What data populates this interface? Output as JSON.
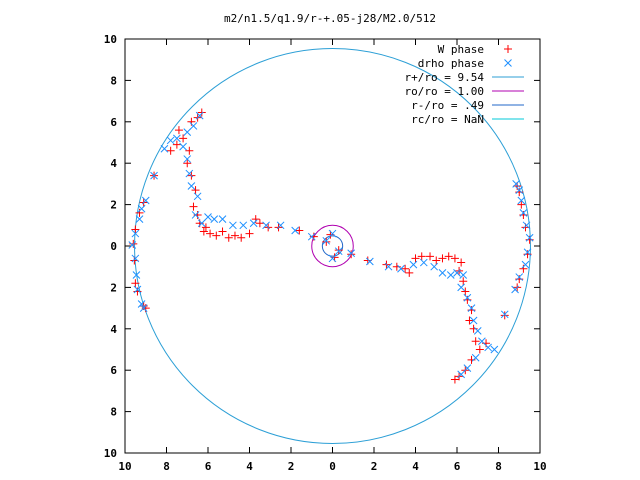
{
  "chart_data": {
    "type": "scatter",
    "title": "m2/n1.5/q1.9/r-+.05-j28/M2.0/512",
    "xlabel": "",
    "ylabel": "",
    "xlim": [
      -10,
      10
    ],
    "ylim": [
      -10,
      10
    ],
    "x_ticks": [
      -10,
      -8,
      -6,
      -4,
      -2,
      0,
      2,
      4,
      6,
      8,
      10
    ],
    "x_tick_labels": [
      "10",
      "8",
      "6",
      "4",
      "2",
      "0",
      "2",
      "4",
      "6",
      "8",
      "10"
    ],
    "y_ticks": [
      10,
      8,
      6,
      4,
      2,
      0,
      -2,
      -4,
      -6,
      -8,
      -10
    ],
    "y_tick_labels": [
      "10",
      "8",
      "6",
      "4",
      "2",
      "0",
      "2",
      "4",
      "6",
      "8",
      "10"
    ],
    "grid": false,
    "legend_position": "top-right",
    "legend": [
      {
        "label": "W phase",
        "kind": "plus",
        "color": "#ff0000"
      },
      {
        "label": "drho phase",
        "kind": "cross",
        "color": "#1e90ff"
      },
      {
        "label": "r+/ro = 9.54",
        "kind": "line",
        "color": "#2c9fd6"
      },
      {
        "label": "ro/ro = 1.00",
        "kind": "line",
        "color": "#b000b0"
      },
      {
        "label": "r-/ro = .49",
        "kind": "line",
        "color": "#2267c8"
      },
      {
        "label": "rc/ro = NaN",
        "kind": "line",
        "color": "#00c8d8"
      }
    ],
    "circles": [
      {
        "name": "r+/ro",
        "radius": 9.54,
        "color": "#2c9fd6"
      },
      {
        "name": "ro/ro",
        "radius": 1.0,
        "color": "#b000b0"
      },
      {
        "name": "r-/ro",
        "radius": 0.49,
        "color": "#2267c8"
      }
    ],
    "series": [
      {
        "name": "W phase",
        "marker": "plus",
        "color": "#ff0000",
        "points": [
          [
            -0.1,
            0.55
          ],
          [
            0.1,
            -0.55
          ],
          [
            -0.3,
            0.2
          ],
          [
            0.3,
            -0.2
          ],
          [
            -0.9,
            0.45
          ],
          [
            -1.6,
            0.75
          ],
          [
            -2.6,
            0.9
          ],
          [
            -3.1,
            0.9
          ],
          [
            -3.5,
            1.1
          ],
          [
            -3.7,
            1.3
          ],
          [
            -4.0,
            0.6
          ],
          [
            -4.4,
            0.4
          ],
          [
            -4.7,
            0.5
          ],
          [
            -5.0,
            0.4
          ],
          [
            -5.3,
            0.7
          ],
          [
            -5.6,
            0.5
          ],
          [
            -5.9,
            0.6
          ],
          [
            -6.2,
            0.7
          ],
          [
            -6.1,
            0.9
          ],
          [
            -6.4,
            1.1
          ],
          [
            -6.5,
            1.5
          ],
          [
            -6.7,
            1.9
          ],
          [
            -6.6,
            2.7
          ],
          [
            -6.8,
            3.4
          ],
          [
            -7.0,
            4.0
          ],
          [
            -6.9,
            4.6
          ],
          [
            -7.2,
            5.2
          ],
          [
            -7.5,
            4.9
          ],
          [
            -7.8,
            4.6
          ],
          [
            -6.5,
            6.2
          ],
          [
            -6.3,
            6.45
          ],
          [
            -6.8,
            6.0
          ],
          [
            -7.4,
            5.6
          ],
          [
            -8.6,
            3.4
          ],
          [
            -9.1,
            2.1
          ],
          [
            -9.3,
            1.6
          ],
          [
            -9.5,
            0.8
          ],
          [
            -9.6,
            0.1
          ],
          [
            -9.55,
            -0.7
          ],
          [
            -9.5,
            -1.8
          ],
          [
            -9.4,
            -2.2
          ],
          [
            -9.1,
            -2.9
          ],
          [
            -9.0,
            -3.0
          ],
          [
            0.9,
            -0.4
          ],
          [
            1.7,
            -0.7
          ],
          [
            2.6,
            -0.9
          ],
          [
            3.1,
            -1.0
          ],
          [
            3.5,
            -1.1
          ],
          [
            3.7,
            -1.3
          ],
          [
            4.0,
            -0.6
          ],
          [
            4.3,
            -0.5
          ],
          [
            4.7,
            -0.5
          ],
          [
            5.0,
            -0.7
          ],
          [
            5.3,
            -0.6
          ],
          [
            5.6,
            -0.5
          ],
          [
            5.9,
            -0.6
          ],
          [
            6.2,
            -0.8
          ],
          [
            6.1,
            -1.2
          ],
          [
            6.3,
            -1.7
          ],
          [
            6.4,
            -2.2
          ],
          [
            6.5,
            -2.6
          ],
          [
            6.7,
            -3.1
          ],
          [
            6.6,
            -3.6
          ],
          [
            6.8,
            -4.0
          ],
          [
            6.9,
            -4.6
          ],
          [
            7.1,
            -5.0
          ],
          [
            6.7,
            -5.5
          ],
          [
            6.4,
            -6.0
          ],
          [
            6.1,
            -6.3
          ],
          [
            5.9,
            -6.45
          ],
          [
            7.4,
            -4.7
          ],
          [
            8.3,
            -3.35
          ],
          [
            8.9,
            -2.0
          ],
          [
            9.0,
            -1.6
          ],
          [
            9.2,
            -1.1
          ],
          [
            9.4,
            -0.4
          ],
          [
            9.5,
            0.3
          ],
          [
            9.3,
            0.9
          ],
          [
            9.2,
            1.5
          ],
          [
            9.1,
            2.0
          ],
          [
            9.0,
            2.6
          ],
          [
            8.9,
            2.9
          ]
        ]
      },
      {
        "name": "drho phase",
        "marker": "cross",
        "color": "#1e90ff",
        "points": [
          [
            0.0,
            0.6
          ],
          [
            0.0,
            -0.6
          ],
          [
            -0.3,
            0.25
          ],
          [
            0.3,
            -0.25
          ],
          [
            -1.0,
            0.45
          ],
          [
            -1.8,
            0.75
          ],
          [
            -2.5,
            1.0
          ],
          [
            -3.2,
            1.0
          ],
          [
            -3.8,
            1.1
          ],
          [
            -4.3,
            1.0
          ],
          [
            -4.8,
            1.0
          ],
          [
            -5.3,
            1.3
          ],
          [
            -5.7,
            1.3
          ],
          [
            -6.0,
            1.4
          ],
          [
            -6.3,
            1.1
          ],
          [
            -6.6,
            1.5
          ],
          [
            -6.5,
            2.4
          ],
          [
            -6.8,
            2.9
          ],
          [
            -6.9,
            3.5
          ],
          [
            -7.0,
            4.2
          ],
          [
            -7.2,
            4.8
          ],
          [
            -7.5,
            5.2
          ],
          [
            -7.8,
            5.1
          ],
          [
            -8.1,
            4.7
          ],
          [
            -6.7,
            5.8
          ],
          [
            -6.4,
            6.3
          ],
          [
            -7.0,
            5.5
          ],
          [
            -8.6,
            3.4
          ],
          [
            -9.0,
            2.2
          ],
          [
            -9.2,
            1.8
          ],
          [
            -9.3,
            1.3
          ],
          [
            -9.5,
            0.6
          ],
          [
            -9.65,
            0.05
          ],
          [
            -9.5,
            -0.6
          ],
          [
            -9.45,
            -1.4
          ],
          [
            -9.4,
            -2.1
          ],
          [
            -9.2,
            -2.8
          ],
          [
            -9.1,
            -3.0
          ],
          [
            0.9,
            -0.35
          ],
          [
            1.8,
            -0.75
          ],
          [
            2.7,
            -1.0
          ],
          [
            3.3,
            -1.1
          ],
          [
            3.9,
            -0.9
          ],
          [
            4.4,
            -0.8
          ],
          [
            4.9,
            -1.0
          ],
          [
            5.3,
            -1.3
          ],
          [
            5.7,
            -1.4
          ],
          [
            6.0,
            -1.3
          ],
          [
            6.3,
            -1.4
          ],
          [
            6.2,
            -2.0
          ],
          [
            6.5,
            -2.5
          ],
          [
            6.7,
            -3.0
          ],
          [
            6.8,
            -3.6
          ],
          [
            7.0,
            -4.1
          ],
          [
            7.2,
            -4.6
          ],
          [
            7.5,
            -4.9
          ],
          [
            7.8,
            -5.0
          ],
          [
            6.9,
            -5.4
          ],
          [
            6.5,
            -5.9
          ],
          [
            6.2,
            -6.2
          ],
          [
            8.3,
            -3.3
          ],
          [
            8.8,
            -2.1
          ],
          [
            9.0,
            -1.5
          ],
          [
            9.3,
            -0.9
          ],
          [
            9.4,
            -0.3
          ],
          [
            9.5,
            0.4
          ],
          [
            9.35,
            1.0
          ],
          [
            9.2,
            1.6
          ],
          [
            9.1,
            2.2
          ],
          [
            9.0,
            2.7
          ],
          [
            8.85,
            3.0
          ]
        ]
      }
    ]
  }
}
